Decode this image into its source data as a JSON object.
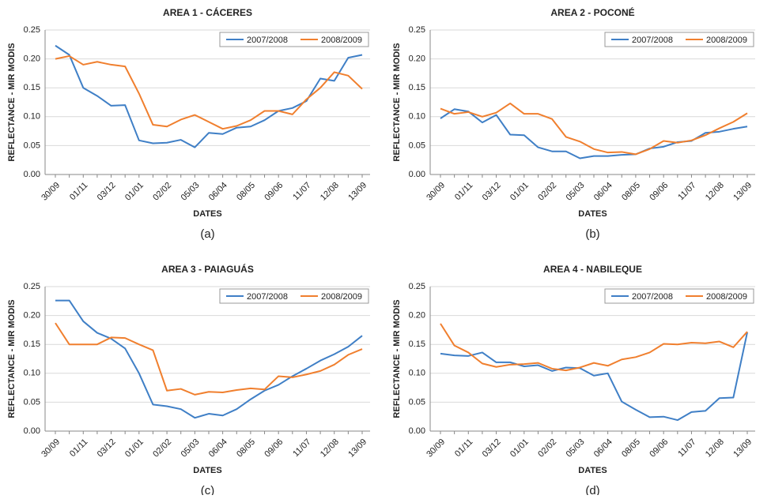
{
  "chart_data": [
    {
      "type": "line",
      "title": "AREA 1 - CÁCERES",
      "caption": "(a)",
      "xlabel": "DATES",
      "ylabel": "REFLECTANCE - MIR MODIS",
      "categories": [
        "30/09",
        null,
        "01/11",
        null,
        "03/12",
        null,
        "01/01",
        null,
        "02/02",
        null,
        "05/03",
        null,
        "06/04",
        null,
        "08/05",
        null,
        "09/06",
        null,
        "11/07",
        null,
        "12/08",
        null,
        "13/09"
      ],
      "ylim": [
        0,
        0.25
      ],
      "yticks": [
        {
          "value": 0,
          "label": "0.00"
        },
        0.05,
        {
          "value": 0.1,
          "label": "0.10"
        },
        0.15,
        {
          "value": 0.2,
          "label": "0.20"
        },
        0.25
      ],
      "grid": true,
      "legend": "upper right",
      "series": [
        {
          "name": "2007/2008",
          "color": "#3f7fc6",
          "values": [
            0.223,
            0.207,
            0.15,
            0.136,
            0.119,
            0.12,
            0.059,
            0.054,
            0.055,
            0.06,
            0.047,
            0.072,
            0.07,
            0.081,
            0.083,
            0.094,
            0.11,
            0.115,
            0.127,
            0.166,
            0.162,
            0.202,
            0.207
          ]
        },
        {
          "name": "2008/2009",
          "color": "#f07f2e",
          "values": [
            0.2,
            0.205,
            0.19,
            0.195,
            0.19,
            0.187,
            0.14,
            0.086,
            0.083,
            0.095,
            0.103,
            0.091,
            0.079,
            0.084,
            0.094,
            0.11,
            0.11,
            0.104,
            0.13,
            0.15,
            0.177,
            0.171,
            0.148
          ]
        }
      ]
    },
    {
      "type": "line",
      "title": "AREA 2 - POCONÉ",
      "caption": "(b)",
      "xlabel": "DATES",
      "ylabel": "REFLECTANCE - MIR MODIS",
      "categories": [
        "30/09",
        null,
        "01/11",
        null,
        "03/12",
        null,
        "01/01",
        null,
        "02/02",
        null,
        "05/03",
        null,
        "06/04",
        null,
        "08/05",
        null,
        "09/06",
        null,
        "11/07",
        null,
        "12/08",
        null,
        "13/09"
      ],
      "ylim": [
        0,
        0.25
      ],
      "yticks": [
        {
          "value": 0,
          "label": "0.00"
        },
        0.05,
        {
          "value": 0.1,
          "label": "0.10"
        },
        0.15,
        {
          "value": 0.2,
          "label": "0.20"
        },
        0.25
      ],
      "grid": true,
      "legend": "upper right",
      "series": [
        {
          "name": "2007/2008",
          "color": "#3f7fc6",
          "values": [
            0.097,
            0.113,
            0.109,
            0.09,
            0.103,
            0.069,
            0.068,
            0.047,
            0.04,
            0.04,
            0.028,
            0.032,
            0.032,
            0.034,
            0.035,
            0.045,
            0.048,
            0.056,
            0.058,
            0.072,
            0.074,
            0.079,
            0.083
          ]
        },
        {
          "name": "2008/2009",
          "color": "#f07f2e",
          "values": [
            0.114,
            0.105,
            0.108,
            0.1,
            0.107,
            0.123,
            0.105,
            0.105,
            0.096,
            0.065,
            0.057,
            0.044,
            0.038,
            0.039,
            0.035,
            0.044,
            0.058,
            0.055,
            0.059,
            0.068,
            0.08,
            0.091,
            0.106
          ]
        }
      ]
    },
    {
      "type": "line",
      "title": "AREA 3 - PAIAGUÁS",
      "caption": "(c)",
      "xlabel": "DATES",
      "ylabel": "REFLECTANCE - MIR MODIS",
      "categories": [
        "30/09",
        null,
        "01/11",
        null,
        "03/12",
        null,
        "01/01",
        null,
        "02/02",
        null,
        "05/03",
        null,
        "06/04",
        null,
        "08/05",
        null,
        "09/06",
        null,
        "11/07",
        null,
        "12/08",
        null,
        "13/09"
      ],
      "ylim": [
        0,
        0.25
      ],
      "yticks": [
        {
          "value": 0,
          "label": "0.00"
        },
        0.05,
        {
          "value": 0.1,
          "label": "0.10"
        },
        0.15,
        {
          "value": 0.2,
          "label": "0.20"
        },
        0.25
      ],
      "grid": true,
      "legend": "upper right",
      "series": [
        {
          "name": "2007/2008",
          "color": "#3f7fc6",
          "values": [
            0.226,
            0.226,
            0.19,
            0.17,
            0.16,
            0.143,
            0.1,
            0.046,
            0.043,
            0.038,
            0.023,
            0.03,
            0.027,
            0.038,
            0.055,
            0.07,
            0.08,
            0.095,
            0.108,
            0.122,
            0.133,
            0.146,
            0.165
          ]
        },
        {
          "name": "2008/2009",
          "color": "#f07f2e",
          "values": [
            0.187,
            0.15,
            0.15,
            0.15,
            0.162,
            0.161,
            0.15,
            0.14,
            0.07,
            0.073,
            0.063,
            0.068,
            0.067,
            0.071,
            0.074,
            0.072,
            0.095,
            0.093,
            0.098,
            0.104,
            0.115,
            0.132,
            0.142
          ]
        }
      ]
    },
    {
      "type": "line",
      "title": "AREA 4 - NABILEQUE",
      "caption": "(d)",
      "xlabel": "DATES",
      "ylabel": "REFLECTANCE - MIR MODIS",
      "categories": [
        "30/09",
        null,
        "01/11",
        null,
        "03/12",
        null,
        "01/01",
        null,
        "02/02",
        null,
        "05/03",
        null,
        "06/04",
        null,
        "08/05",
        null,
        "09/06",
        null,
        "11/07",
        null,
        "12/08",
        null,
        "13/09"
      ],
      "ylim": [
        0,
        0.25
      ],
      "yticks": [
        {
          "value": 0,
          "label": "0.00"
        },
        0.05,
        {
          "value": 0.1,
          "label": "0.10"
        },
        0.15,
        {
          "value": 0.2,
          "label": "0.20"
        },
        0.25
      ],
      "grid": true,
      "legend": "upper right",
      "series": [
        {
          "name": "2007/2008",
          "color": "#3f7fc6",
          "values": [
            0.134,
            0.131,
            0.13,
            0.136,
            0.119,
            0.119,
            0.112,
            0.114,
            0.104,
            0.11,
            0.109,
            0.096,
            0.1,
            0.051,
            0.037,
            0.024,
            0.025,
            0.019,
            0.033,
            0.035,
            0.057,
            0.058,
            0.171
          ]
        },
        {
          "name": "2008/2009",
          "color": "#f07f2e",
          "values": [
            0.186,
            0.148,
            0.136,
            0.117,
            0.111,
            0.115,
            0.116,
            0.118,
            0.108,
            0.105,
            0.11,
            0.118,
            0.113,
            0.124,
            0.128,
            0.136,
            0.151,
            0.15,
            0.153,
            0.152,
            0.155,
            0.145,
            0.172
          ]
        }
      ]
    }
  ]
}
